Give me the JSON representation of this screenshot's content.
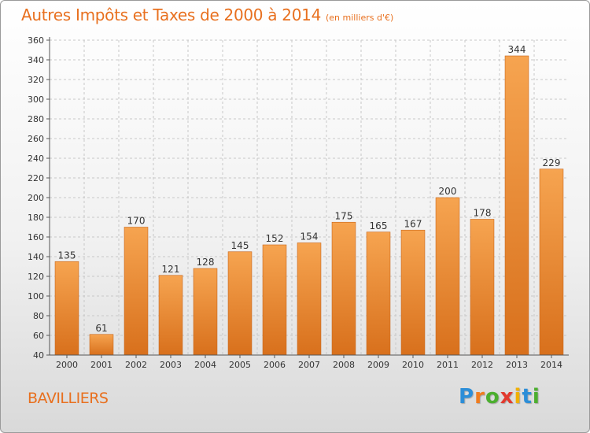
{
  "title": "Autres Impôts et Taxes de 2000 à 2014",
  "unit": "(en milliers d'€)",
  "place": "BAVILLIERS",
  "brand": {
    "letters": [
      "P",
      "r",
      "o",
      "x",
      "i",
      "t",
      "i"
    ],
    "colors": [
      "#2c8ed8",
      "#f07c1e",
      "#4caf2f",
      "#e23a2e",
      "#f0b000",
      "#2c8ed8",
      "#4caf2f"
    ]
  },
  "colors": {
    "accent": "#e8701f",
    "bar_top": "#f6a450",
    "bar_bottom": "#d8701c",
    "grid": "#c8c8c8"
  },
  "chart_data": {
    "type": "bar",
    "categories": [
      "2000",
      "2001",
      "2002",
      "2003",
      "2004",
      "2005",
      "2006",
      "2007",
      "2008",
      "2009",
      "2010",
      "2011",
      "2012",
      "2013",
      "2014"
    ],
    "values": [
      135,
      61,
      170,
      121,
      128,
      145,
      152,
      154,
      175,
      165,
      167,
      200,
      178,
      344,
      229
    ],
    "ylim": [
      40,
      360
    ],
    "ytick_step": 20,
    "grid": true
  }
}
